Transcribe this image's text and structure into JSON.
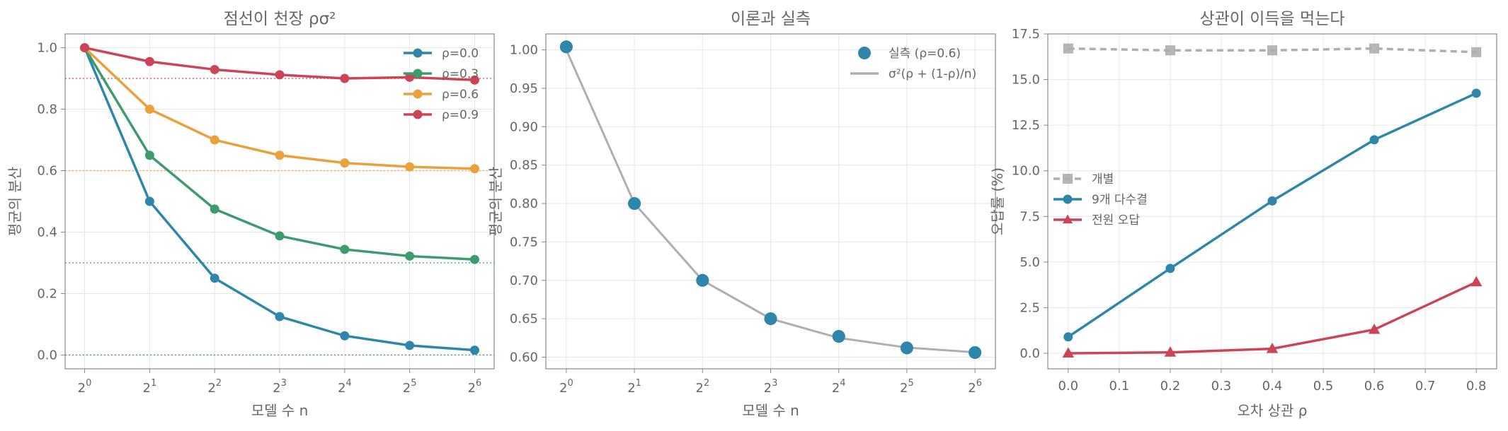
{
  "colors": {
    "blue": "#2E86AB",
    "green": "#3E9B6E",
    "orange": "#EBA03C",
    "red": "#CC4557",
    "gray": "#AFAFAF",
    "axis": "#888888",
    "grid": "#E6E6E6",
    "text": "#666666"
  },
  "chart_data": [
    {
      "type": "line",
      "title": "점선이 천장 ρσ²",
      "xlabel": "모델 수 n",
      "ylabel": "평균의 분산",
      "x": [
        1,
        2,
        4,
        8,
        16,
        32,
        64
      ],
      "x_scale": "log2",
      "xtick_base": "2",
      "xtick_exponents": [
        "0",
        "1",
        "2",
        "3",
        "4",
        "5",
        "6"
      ],
      "ylim": [
        -0.045,
        1.045
      ],
      "yticks": [
        "0.0",
        "0.2",
        "0.4",
        "0.6",
        "0.8",
        "1.0"
      ],
      "grid": true,
      "legend_position": "top-right",
      "series": [
        {
          "name": "ρ=0.0",
          "color_key": "blue",
          "ceiling": 0.0,
          "values": [
            1.0,
            0.5,
            0.25,
            0.125,
            0.0625,
            0.03125,
            0.015625
          ]
        },
        {
          "name": "ρ=0.3",
          "color_key": "green",
          "ceiling": 0.3,
          "values": [
            1.0,
            0.65,
            0.475,
            0.3875,
            0.34375,
            0.321875,
            0.3109375
          ]
        },
        {
          "name": "ρ=0.6",
          "color_key": "orange",
          "ceiling": 0.6,
          "values": [
            1.0,
            0.8,
            0.7,
            0.65,
            0.625,
            0.6125,
            0.60625
          ]
        },
        {
          "name": "ρ=0.9",
          "color_key": "red",
          "ceiling": 0.9,
          "values": [
            1.0,
            0.955,
            0.929,
            0.912,
            0.9,
            0.904,
            0.895
          ]
        }
      ]
    },
    {
      "type": "line",
      "title": "이론과 실측",
      "xlabel": "모델 수 n",
      "ylabel": "평균의 분산",
      "x": [
        1,
        2,
        4,
        8,
        16,
        32,
        64
      ],
      "x_scale": "log2",
      "xtick_base": "2",
      "xtick_exponents": [
        "0",
        "1",
        "2",
        "3",
        "4",
        "5",
        "6"
      ],
      "ylim": [
        0.5848,
        1.0208
      ],
      "yticks": [
        "0.60",
        "0.65",
        "0.70",
        "0.75",
        "0.80",
        "0.85",
        "0.90",
        "0.95",
        "1.00"
      ],
      "grid": true,
      "legend_position": "top-right",
      "series": [
        {
          "name": "실측 (ρ=0.6)",
          "kind": "scatter",
          "color_key": "blue",
          "values": [
            1.004,
            0.8,
            0.7,
            0.65,
            0.627,
            0.612,
            0.606
          ]
        },
        {
          "name": "σ²(ρ + (1-ρ)/n)",
          "kind": "line",
          "color_key": "gray",
          "values": [
            1.0,
            0.8,
            0.7,
            0.65,
            0.625,
            0.6125,
            0.60625
          ]
        }
      ]
    },
    {
      "type": "line",
      "title": "상관이 이득을 먹는다",
      "xlabel": "오차 상관 ρ",
      "ylabel": "오답률 (%)",
      "x": [
        0.0,
        0.2,
        0.4,
        0.6,
        0.8
      ],
      "xlim": [
        -0.04,
        0.84
      ],
      "xticks": [
        "0.0",
        "0.1",
        "0.2",
        "0.3",
        "0.4",
        "0.5",
        "0.6",
        "0.7",
        "0.8"
      ],
      "ylim": [
        -0.85,
        17.5
      ],
      "yticks": [
        "0.0",
        "2.5",
        "5.0",
        "7.5",
        "10.0",
        "12.5",
        "15.0",
        "17.5"
      ],
      "grid": true,
      "legend_position": "center-left",
      "series": [
        {
          "name": "개별",
          "kind": "dashed",
          "marker": "square",
          "color_key": "gray",
          "values": [
            16.7,
            16.6,
            16.6,
            16.7,
            16.5
          ]
        },
        {
          "name": "9개 다수결",
          "kind": "line",
          "marker": "circle",
          "color_key": "blue",
          "values": [
            0.9,
            4.65,
            8.35,
            11.7,
            14.25
          ]
        },
        {
          "name": "전원 오답",
          "kind": "line",
          "marker": "triangle",
          "color_key": "red",
          "values": [
            0.0,
            0.05,
            0.25,
            1.3,
            3.9
          ]
        }
      ]
    }
  ]
}
